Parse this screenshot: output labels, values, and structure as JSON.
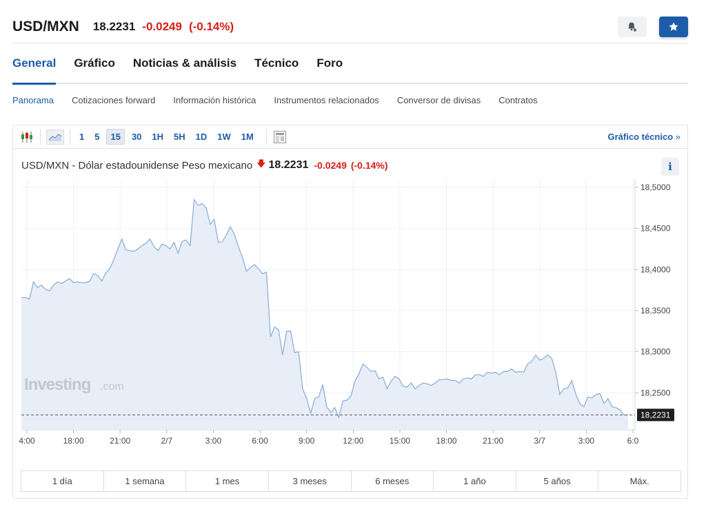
{
  "header": {
    "pair": "USD/MXN",
    "price": "18.2231",
    "change": "-0.0249",
    "change_pct": "(-0.14%)",
    "alert_icon": "bell-plus-icon",
    "star_icon": "star-icon",
    "accent": "#1c5ca8",
    "down_color": "#d91e18"
  },
  "main_tabs": [
    "General",
    "Gráfico",
    "Noticias & análisis",
    "Técnico",
    "Foro"
  ],
  "sub_tabs": [
    "Panorama",
    "Cotizaciones forward",
    "Información histórica",
    "Instrumentos relacionados",
    "Conversor de divisas",
    "Contratos"
  ],
  "toolbar": {
    "intervals": [
      "1",
      "5",
      "15",
      "30",
      "1H",
      "5H",
      "1D",
      "1W",
      "1M"
    ],
    "selected_interval": "15",
    "technical_link": "Gráfico técnico",
    "link_arrow": "»"
  },
  "chart_header": {
    "title": "USD/MXN - Dólar estadounidense Peso mexicano",
    "arrow": "🡇",
    "price": "18.2231",
    "change": "-0.0249",
    "change_pct": "(-0.14%)",
    "info": "i"
  },
  "watermark": {
    "brand": "Investing",
    "suffix": ".com"
  },
  "chart_data": {
    "type": "area",
    "title": "USD/MXN - Dólar estadounidense Peso mexicano",
    "xlabel": "",
    "ylabel": "",
    "ylim": [
      18.205,
      18.51
    ],
    "yticks": [
      "18,5000",
      "18,4500",
      "18,4000",
      "18,3500",
      "18,3000",
      "18,2500"
    ],
    "ytick_values": [
      18.5,
      18.45,
      18.4,
      18.35,
      18.3,
      18.25
    ],
    "xticks": [
      "4:00",
      "18:00",
      "21:00",
      "2/7",
      "3:00",
      "6:00",
      "9:00",
      "12:00",
      "15:00",
      "18:00",
      "21:00",
      "3/7",
      "3:00",
      "6:0"
    ],
    "last_price_label": "18,2231",
    "last_price": 18.2231,
    "grid": true,
    "series": [
      {
        "values": [
          18.366,
          18.366,
          18.364,
          18.385,
          18.378,
          18.381,
          18.376,
          18.374,
          18.381,
          18.385,
          18.383,
          18.386,
          18.389,
          18.384,
          18.385,
          18.384,
          18.384,
          18.386,
          18.395,
          18.393,
          18.386,
          18.396,
          18.401,
          18.412,
          18.425,
          18.437,
          18.424,
          18.423,
          18.422,
          18.425,
          18.429,
          18.432,
          18.437,
          18.428,
          18.423,
          18.431,
          18.429,
          18.425,
          18.433,
          18.42,
          18.434,
          18.436,
          18.429,
          18.485,
          18.478,
          18.48,
          18.475,
          18.455,
          18.461,
          18.433,
          18.434,
          18.442,
          18.452,
          18.443,
          18.428,
          18.415,
          18.398,
          18.402,
          18.406,
          18.401,
          18.395,
          18.397,
          18.318,
          18.33,
          18.327,
          18.296,
          18.325,
          18.325,
          18.299,
          18.3,
          18.255,
          18.243,
          18.225,
          18.243,
          18.245,
          18.26,
          18.233,
          18.226,
          18.232,
          18.22,
          18.24,
          18.241,
          18.246,
          18.264,
          18.273,
          18.285,
          18.281,
          18.276,
          18.277,
          18.267,
          18.269,
          18.255,
          18.264,
          18.27,
          18.267,
          18.258,
          18.257,
          18.262,
          18.255,
          18.259,
          18.262,
          18.261,
          18.259,
          18.262,
          18.266,
          18.266,
          18.267,
          18.265,
          18.265,
          18.262,
          18.267,
          18.268,
          18.267,
          18.272,
          18.272,
          18.27,
          18.275,
          18.274,
          18.275,
          18.272,
          18.276,
          18.276,
          18.279,
          18.275,
          18.276,
          18.275,
          18.285,
          18.288,
          18.296,
          18.29,
          18.292,
          18.296,
          18.292,
          18.275,
          18.248,
          18.255,
          18.256,
          18.265,
          18.248,
          18.237,
          18.233,
          18.245,
          18.244,
          18.248,
          18.249,
          18.237,
          18.243,
          18.233,
          18.232,
          18.229,
          18.223,
          18.2231
        ]
      }
    ]
  },
  "ranges": [
    "1 día",
    "1 semana",
    "1 mes",
    "3 meses",
    "6 meses",
    "1 año",
    "5 años",
    "Máx."
  ]
}
